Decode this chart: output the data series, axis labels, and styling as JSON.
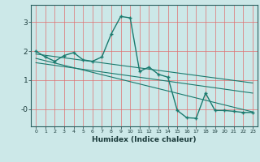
{
  "title": "",
  "xlabel": "Humidex (Indice chaleur)",
  "background_color": "#cce8e8",
  "grid_color_v": "#e89090",
  "grid_color_h": "#e8b0b0",
  "line_color": "#1a7a6e",
  "xlim": [
    -0.5,
    23.5
  ],
  "ylim": [
    -0.6,
    3.6
  ],
  "yticks": [
    0,
    1,
    2,
    3
  ],
  "ytick_labels": [
    "-0",
    "1",
    "2",
    "3"
  ],
  "xticks": [
    0,
    1,
    2,
    3,
    4,
    5,
    6,
    7,
    8,
    9,
    10,
    11,
    12,
    13,
    14,
    15,
    16,
    17,
    18,
    19,
    20,
    21,
    22,
    23
  ],
  "series1_x": [
    0,
    1,
    2,
    3,
    4,
    5,
    6,
    7,
    8,
    9,
    10,
    11,
    12,
    13,
    14,
    15,
    16,
    17,
    18,
    19,
    20,
    21,
    22,
    23
  ],
  "series1_y": [
    2.0,
    1.8,
    1.65,
    1.85,
    1.95,
    1.7,
    1.65,
    1.8,
    2.6,
    3.2,
    3.15,
    1.3,
    1.45,
    1.2,
    1.1,
    -0.05,
    -0.3,
    -0.32,
    0.55,
    -0.05,
    -0.05,
    -0.08,
    -0.12,
    -0.12
  ],
  "trend1_x": [
    0,
    23
  ],
  "trend1_y": [
    1.9,
    0.9
  ],
  "trend2_x": [
    0,
    23
  ],
  "trend2_y": [
    1.75,
    -0.1
  ],
  "trend3_x": [
    0,
    23
  ],
  "trend3_y": [
    1.6,
    0.55
  ]
}
